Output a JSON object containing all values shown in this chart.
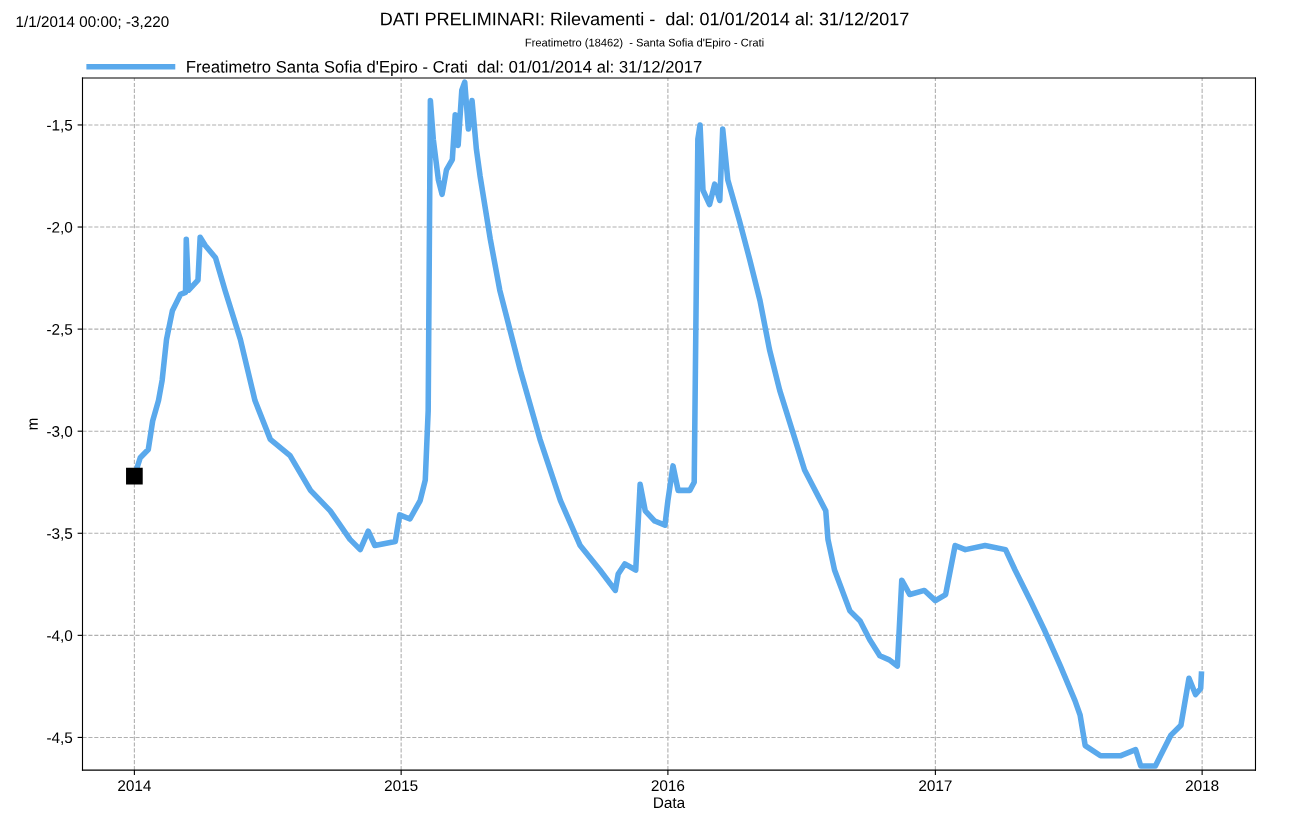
{
  "chart_data": {
    "type": "line",
    "title": "DATI PRELIMINARI: Rilevamenti -  dal: 01/01/2014 al: 31/12/2017",
    "subtitle": "Freatimetro (18462)  - Santa Sofia d'Epiro - Crati",
    "xlabel": "Data",
    "ylabel": "m",
    "annotations": [
      "1/1/2014 00:00; -3,220"
    ],
    "x": [
      "2014-01-01",
      "2014-01-09",
      "2014-01-20",
      "2014-01-26",
      "2014-02-03",
      "2014-02-08",
      "2014-02-14",
      "2014-02-22",
      "2014-03-05",
      "2014-03-12",
      "2014-03-13",
      "2014-03-16",
      "2014-03-29",
      "2014-04-01",
      "2014-04-08",
      "2014-04-22",
      "2014-05-05",
      "2014-05-26",
      "2014-06-15",
      "2014-07-06",
      "2014-08-02",
      "2014-08-30",
      "2014-09-26",
      "2014-10-23",
      "2014-11-06",
      "2014-11-17",
      "2014-11-26",
      "2014-12-24",
      "2014-12-30",
      "2015-01-13",
      "2015-01-27",
      "2015-02-03",
      "2015-02-07",
      "2015-02-10",
      "2015-02-14",
      "2015-02-21",
      "2015-02-26",
      "2015-03-04",
      "2015-03-12",
      "2015-03-16",
      "2015-03-20",
      "2015-03-25",
      "2015-03-29",
      "2015-04-03",
      "2015-04-08",
      "2015-04-14",
      "2015-04-19",
      "2015-05-03",
      "2015-05-16",
      "2015-06-13",
      "2015-07-10",
      "2015-08-07",
      "2015-09-03",
      "2015-09-30",
      "2015-10-21",
      "2015-10-25",
      "2015-11-03",
      "2015-11-18",
      "2015-11-24",
      "2015-12-01",
      "2015-12-14",
      "2015-12-28",
      "2016-01-01",
      "2016-01-08",
      "2016-01-15",
      "2016-01-31",
      "2016-02-06",
      "2016-02-11",
      "2016-02-14",
      "2016-02-18",
      "2016-02-27",
      "2016-03-05",
      "2016-03-12",
      "2016-03-16",
      "2016-03-23",
      "2016-04-08",
      "2016-04-22",
      "2016-05-06",
      "2016-05-19",
      "2016-06-02",
      "2016-06-23",
      "2016-07-06",
      "2016-08-04",
      "2016-08-07",
      "2016-08-16",
      "2016-09-06",
      "2016-09-20",
      "2016-10-03",
      "2016-10-17",
      "2016-10-30",
      "2016-11-10",
      "2016-11-16",
      "2016-11-27",
      "2016-12-17",
      "2017-01-01",
      "2017-01-15",
      "2017-01-28",
      "2017-02-11",
      "2017-03-10",
      "2017-04-07",
      "2017-04-20",
      "2017-05-11",
      "2017-05-31",
      "2017-06-21",
      "2017-07-11",
      "2017-07-18",
      "2017-07-25",
      "2017-08-15",
      "2017-09-11",
      "2017-10-02",
      "2017-10-09",
      "2017-10-29",
      "2017-11-05",
      "2017-11-19",
      "2017-12-03",
      "2017-12-14",
      "2017-12-23",
      "2017-12-30",
      "2017-12-31"
    ],
    "series": [
      {
        "name": "Freatimetro Santa Sofia d'Epiro - Crati  dal: 01/01/2014 al: 31/12/2017",
        "color": "#5aa9ec",
        "values": [
          -3.22,
          -3.13,
          -3.09,
          -2.95,
          -2.85,
          -2.75,
          -2.55,
          -2.41,
          -2.33,
          -2.32,
          -2.06,
          -2.31,
          -2.26,
          -2.05,
          -2.09,
          -2.15,
          -2.31,
          -2.55,
          -2.85,
          -3.04,
          -3.12,
          -3.29,
          -3.39,
          -3.53,
          -3.58,
          -3.49,
          -3.56,
          -3.54,
          -3.41,
          -3.43,
          -3.34,
          -3.24,
          -2.9,
          -1.38,
          -1.57,
          -1.77,
          -1.84,
          -1.72,
          -1.67,
          -1.45,
          -1.6,
          -1.33,
          -1.29,
          -1.52,
          -1.38,
          -1.62,
          -1.75,
          -2.06,
          -2.31,
          -2.7,
          -3.04,
          -3.34,
          -3.56,
          -3.68,
          -3.78,
          -3.7,
          -3.65,
          -3.68,
          -3.26,
          -3.39,
          -3.44,
          -3.46,
          -3.34,
          -3.17,
          -3.29,
          -3.29,
          -3.25,
          -1.57,
          -1.5,
          -1.82,
          -1.89,
          -1.79,
          -1.87,
          -1.52,
          -1.77,
          -1.97,
          -2.16,
          -2.36,
          -2.6,
          -2.8,
          -3.04,
          -3.19,
          -3.39,
          -3.53,
          -3.68,
          -3.88,
          -3.93,
          -4.02,
          -4.1,
          -4.12,
          -4.15,
          -3.73,
          -3.8,
          -3.78,
          -3.83,
          -3.8,
          -3.56,
          -3.58,
          -3.56,
          -3.58,
          -3.68,
          -3.83,
          -3.98,
          -4.15,
          -4.32,
          -4.39,
          -4.54,
          -4.59,
          -4.59,
          -4.56,
          -4.64,
          -4.64,
          -4.59,
          -4.49,
          -4.44,
          -4.21,
          -4.29,
          -4.26,
          -4.19
        ]
      }
    ],
    "xlim": [
      "2013-10-22",
      "2018-03-15"
    ],
    "xticks": [
      {
        "value": "2014-01-01",
        "label": "2014"
      },
      {
        "value": "2015-01-01",
        "label": "2015"
      },
      {
        "value": "2016-01-01",
        "label": "2016"
      },
      {
        "value": "2017-01-01",
        "label": "2017"
      },
      {
        "value": "2018-01-01",
        "label": "2018"
      }
    ],
    "ylim": [
      -4.66,
      -1.27
    ],
    "yticks": [
      {
        "value": -4.5,
        "label": "-4,5"
      },
      {
        "value": -4.0,
        "label": "-4,0"
      },
      {
        "value": -3.5,
        "label": "-3,5"
      },
      {
        "value": -3.0,
        "label": "-3,0"
      },
      {
        "value": -2.5,
        "label": "-2,5"
      },
      {
        "value": -2.0,
        "label": "-2,0"
      },
      {
        "value": -1.5,
        "label": "-1,5"
      }
    ],
    "grid": true,
    "legend": "top left",
    "marker": "none",
    "line_style": "solid"
  }
}
